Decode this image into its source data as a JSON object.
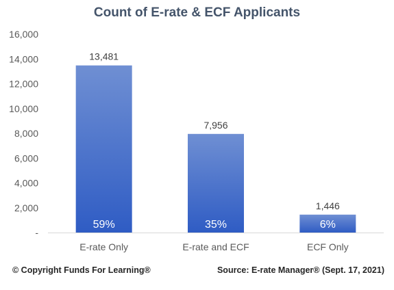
{
  "chart_data": {
    "type": "bar",
    "title": "Count of E-rate & ECF Applicants",
    "categories": [
      "E-rate Only",
      "E-rate and ECF",
      "ECF Only"
    ],
    "values": [
      13481,
      7956,
      1446
    ],
    "value_labels": [
      "13,481",
      "7,956",
      "1,446"
    ],
    "percent_labels": [
      "59%",
      "35%",
      "6%"
    ],
    "ylim": [
      0,
      16000
    ],
    "y_ticks": [
      0,
      2000,
      4000,
      6000,
      8000,
      10000,
      12000,
      14000,
      16000
    ],
    "y_tick_labels": [
      "-",
      "2,000",
      "4,000",
      "6,000",
      "8,000",
      "10,000",
      "12,000",
      "14,000",
      "16,000"
    ],
    "xlabel": "",
    "ylabel": "",
    "grid": false,
    "legend": "none",
    "bar_color_top": "#6f8fd3",
    "bar_color_bottom": "#2f5cc4"
  },
  "footer": {
    "copyright": "© Copyright Funds For Learning®",
    "source": "Source: E-rate Manager® (Sept. 17, 2021)"
  }
}
